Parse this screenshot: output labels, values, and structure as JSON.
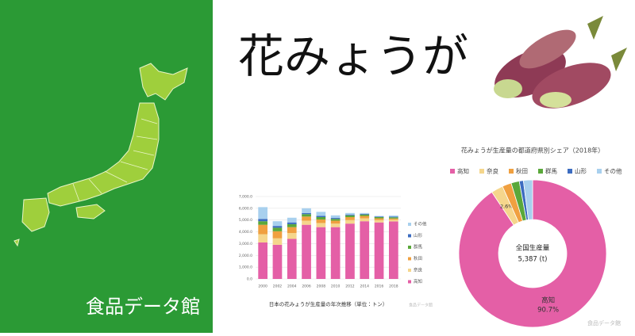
{
  "brand": "食品データ館",
  "title": "花みょうが",
  "chart_data": [
    {
      "type": "bar",
      "stacked": true,
      "x_label": "日本の花みょうが生産量の年次推移（単位：トン）",
      "categories": [
        "2000",
        "2002",
        "2004",
        "2006",
        "2008",
        "2010",
        "2012",
        "2014",
        "2016",
        "2018"
      ],
      "series": [
        {
          "name": "高知",
          "color": "#e45fa6",
          "values": [
            3100,
            2900,
            3400,
            4600,
            4400,
            4400,
            4700,
            4900,
            4800,
            4886
          ]
        },
        {
          "name": "奈良",
          "color": "#f5d68c",
          "values": [
            700,
            550,
            500,
            350,
            350,
            300,
            300,
            250,
            200,
            140
          ]
        },
        {
          "name": "秋田",
          "color": "#f0a040",
          "values": [
            800,
            600,
            500,
            350,
            300,
            250,
            250,
            200,
            150,
            110
          ]
        },
        {
          "name": "群馬",
          "color": "#5aa83a",
          "values": [
            300,
            300,
            250,
            200,
            200,
            150,
            150,
            120,
            100,
            100
          ]
        },
        {
          "name": "山形",
          "color": "#3c6cc0",
          "values": [
            200,
            150,
            150,
            100,
            100,
            80,
            70,
            60,
            50,
            50
          ]
        },
        {
          "name": "その他",
          "color": "#a8d0ee",
          "values": [
            1000,
            400,
            400,
            400,
            350,
            220,
            130,
            70,
            50,
            100
          ]
        }
      ],
      "ylim": [
        0,
        7000
      ],
      "yticks": [
        {
          "value": 0,
          "label": "0.0"
        },
        {
          "value": 1000,
          "label": "1,000.0"
        },
        {
          "value": 2000,
          "label": "2,000.0"
        },
        {
          "value": 3000,
          "label": "3,000.0"
        },
        {
          "value": 4000,
          "label": "4,000.0"
        },
        {
          "value": 5000,
          "label": "5,000.0"
        },
        {
          "value": 6000,
          "label": "6,000.0"
        },
        {
          "value": 7000,
          "label": "7,000.0"
        }
      ],
      "grid": true,
      "legend": "right",
      "watermark": "食品データ館"
    },
    {
      "type": "donut",
      "title": "花みょうが生産量の都道府県別シェア（2018年）",
      "categories": [
        "高知",
        "奈良",
        "秋田",
        "群馬",
        "山形",
        "その他"
      ],
      "values": [
        90.7,
        2.6,
        2.0,
        1.8,
        0.9,
        2.0
      ],
      "value_labels": [
        "90.7%",
        "2.6%",
        null,
        null,
        null,
        null
      ],
      "colors": [
        "#e45fa6",
        "#f5d68c",
        "#f0a040",
        "#5aa83a",
        "#3c6cc0",
        "#a8d0ee"
      ],
      "center_text": [
        "全国生産量",
        "5,387 (t)"
      ],
      "legend": "top",
      "watermark": "食品データ館"
    }
  ]
}
